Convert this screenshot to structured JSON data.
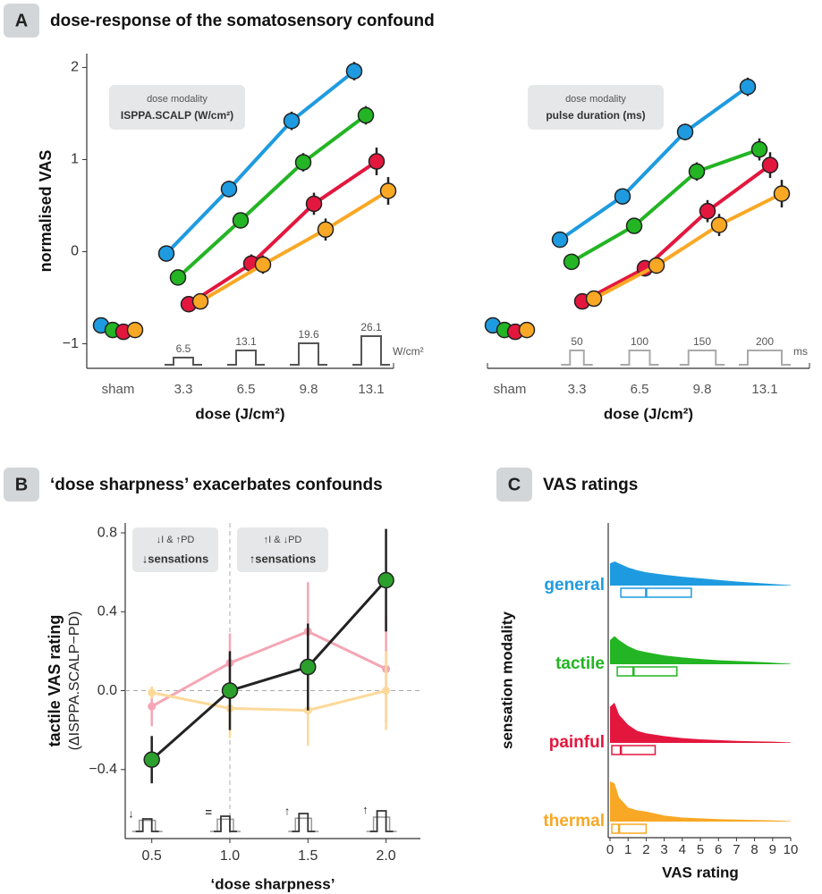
{
  "chart_data": [
    {
      "type": "line",
      "panel": "A",
      "title": "dose-response of the somatosensory confound",
      "ylabel": "normalised VAS",
      "xlabel": "dose (J/cm²)",
      "sham_label": "sham",
      "categories": [
        "3.3",
        "6.5",
        "9.8",
        "13.1"
      ],
      "ylim": [
        -1.15,
        2.15
      ],
      "yticks": [
        {
          "value": -1,
          "label": "−1"
        },
        0,
        1,
        2
      ],
      "legend_title": "dose modality",
      "legend_label": "ISPPA.SCALP (W/cm²)",
      "pulse_mode": "intensity",
      "pulses": [
        6.5,
        13.1,
        19.6,
        26.1
      ],
      "pulse_unit": "W/cm²",
      "series": [
        {
          "color": "#1e9be0",
          "sham_value": -0.8,
          "values": [
            -0.02,
            0.68,
            1.42,
            1.96
          ],
          "errors": [
            0.08,
            0.09,
            0.1,
            0.1
          ]
        },
        {
          "color": "#23b523",
          "sham_value": -0.85,
          "values": [
            -0.28,
            0.34,
            0.97,
            1.48
          ],
          "errors": [
            0.07,
            0.08,
            0.1,
            0.1
          ]
        },
        {
          "color": "#e3173e",
          "sham_value": -0.87,
          "values": [
            -0.57,
            -0.13,
            0.52,
            0.98
          ],
          "errors": [
            0.06,
            0.1,
            0.12,
            0.15
          ]
        },
        {
          "color": "#f9a825",
          "sham_value": -0.85,
          "values": [
            -0.54,
            -0.14,
            0.24,
            0.66
          ],
          "errors": [
            0.06,
            0.1,
            0.12,
            0.15
          ]
        }
      ]
    },
    {
      "type": "line",
      "xlabel": "dose (J/cm²)",
      "sham_label": "sham",
      "categories": [
        "3.3",
        "6.5",
        "9.8",
        "13.1"
      ],
      "ylim": [
        -1.15,
        2.15
      ],
      "legend_title": "dose modality",
      "legend_label": "pulse duration (ms)",
      "pulse_mode": "duration",
      "pulses": [
        50,
        100,
        150,
        200
      ],
      "pulse_unit": "ms",
      "series": [
        {
          "color": "#1e9be0",
          "sham_value": -0.8,
          "values": [
            0.13,
            0.6,
            1.3,
            1.79
          ],
          "errors": [
            0.07,
            0.08,
            0.09,
            0.1
          ]
        },
        {
          "color": "#23b523",
          "sham_value": -0.85,
          "values": [
            -0.11,
            0.28,
            0.87,
            1.11
          ],
          "errors": [
            0.06,
            0.08,
            0.1,
            0.12
          ]
        },
        {
          "color": "#e3173e",
          "sham_value": -0.87,
          "values": [
            -0.54,
            -0.18,
            0.44,
            0.94
          ],
          "errors": [
            0.06,
            0.09,
            0.12,
            0.14
          ]
        },
        {
          "color": "#f9a825",
          "sham_value": -0.85,
          "values": [
            -0.51,
            -0.15,
            0.29,
            0.63
          ],
          "errors": [
            0.06,
            0.09,
            0.12,
            0.15
          ]
        }
      ]
    },
    {
      "type": "line",
      "panel": "B",
      "title": "‘dose sharpness’ exacerbates confounds",
      "ylabel": "tactile VAS rating",
      "ylabel_sub": "(ΔISPPA.SCALP−PD)",
      "xlabel": "‘dose sharpness’",
      "x": [
        0.5,
        1.0,
        1.5,
        2.0
      ],
      "xlim": [
        0.33,
        2.22
      ],
      "xticks": [
        0.5,
        {
          "value": 1,
          "label": "1.0"
        },
        1.5,
        {
          "value": 2,
          "label": "2.0"
        }
      ],
      "ylim": [
        -0.75,
        0.85
      ],
      "yticks": [
        {
          "value": -0.4,
          "label": "−0.4"
        },
        {
          "value": 0,
          "label": "0.0"
        },
        0.4,
        0.8
      ],
      "reference_lines": {
        "x": 1.0,
        "y": 0
      },
      "annotations": [
        {
          "line1": "↓I & ↑PD",
          "line2": "↓sensations"
        },
        {
          "line1": "↑I & ↓PD",
          "line2": "↑sensations"
        }
      ],
      "sharpness_icons": [
        "↓",
        "=",
        "↑",
        "↑"
      ],
      "series": [
        {
          "color": "#f4a6b4",
          "values": [
            -0.08,
            0.14,
            0.3,
            0.11
          ],
          "errors": [
            0.1,
            0.15,
            0.25,
            0.27
          ]
        },
        {
          "color": "#fcd99a",
          "values": [
            -0.01,
            -0.09,
            -0.1,
            0.0
          ],
          "errors": [
            0.03,
            0.15,
            0.18,
            0.2
          ]
        },
        {
          "color": "#222222",
          "marker_color": "#2ca02c",
          "values": [
            -0.35,
            0.0,
            0.12,
            0.56
          ],
          "errors": [
            0.12,
            0.2,
            0.22,
            0.26
          ]
        }
      ]
    },
    {
      "type": "density",
      "panel": "C",
      "title": "VAS ratings",
      "ylabel": "sensation modality",
      "xlabel": "VAS rating",
      "categories": [
        "general",
        "tactile",
        "painful",
        "thermal"
      ],
      "colors": [
        "#1e9be0",
        "#23b523",
        "#e3173e",
        "#f9a825"
      ],
      "xlim": [
        0,
        10
      ],
      "xticks": [
        0,
        1,
        2,
        3,
        4,
        5,
        6,
        7,
        8,
        9,
        10
      ],
      "grid_x": [
        0,
        0.25,
        0.5,
        1,
        1.5,
        2,
        3,
        4,
        5,
        6,
        7,
        8,
        9,
        10
      ],
      "densities": [
        [
          0.55,
          0.6,
          0.55,
          0.45,
          0.38,
          0.33,
          0.27,
          0.22,
          0.18,
          0.14,
          0.1,
          0.07,
          0.04,
          0.01
        ],
        [
          0.6,
          0.7,
          0.6,
          0.45,
          0.35,
          0.3,
          0.22,
          0.17,
          0.13,
          0.1,
          0.08,
          0.06,
          0.04,
          0.01
        ],
        [
          0.9,
          1.0,
          0.7,
          0.45,
          0.3,
          0.24,
          0.17,
          0.12,
          0.09,
          0.07,
          0.05,
          0.04,
          0.03,
          0.01
        ],
        [
          1.0,
          0.95,
          0.6,
          0.35,
          0.28,
          0.25,
          0.15,
          0.1,
          0.08,
          0.06,
          0.05,
          0.04,
          0.03,
          0.01
        ]
      ],
      "boxes": [
        {
          "q1": 0.6,
          "median": 2.0,
          "q3": 4.5
        },
        {
          "q1": 0.4,
          "median": 1.3,
          "q3": 3.7
        },
        {
          "q1": 0.1,
          "median": 0.6,
          "q3": 2.5
        },
        {
          "q1": 0.1,
          "median": 0.5,
          "q3": 2.0
        }
      ]
    }
  ]
}
